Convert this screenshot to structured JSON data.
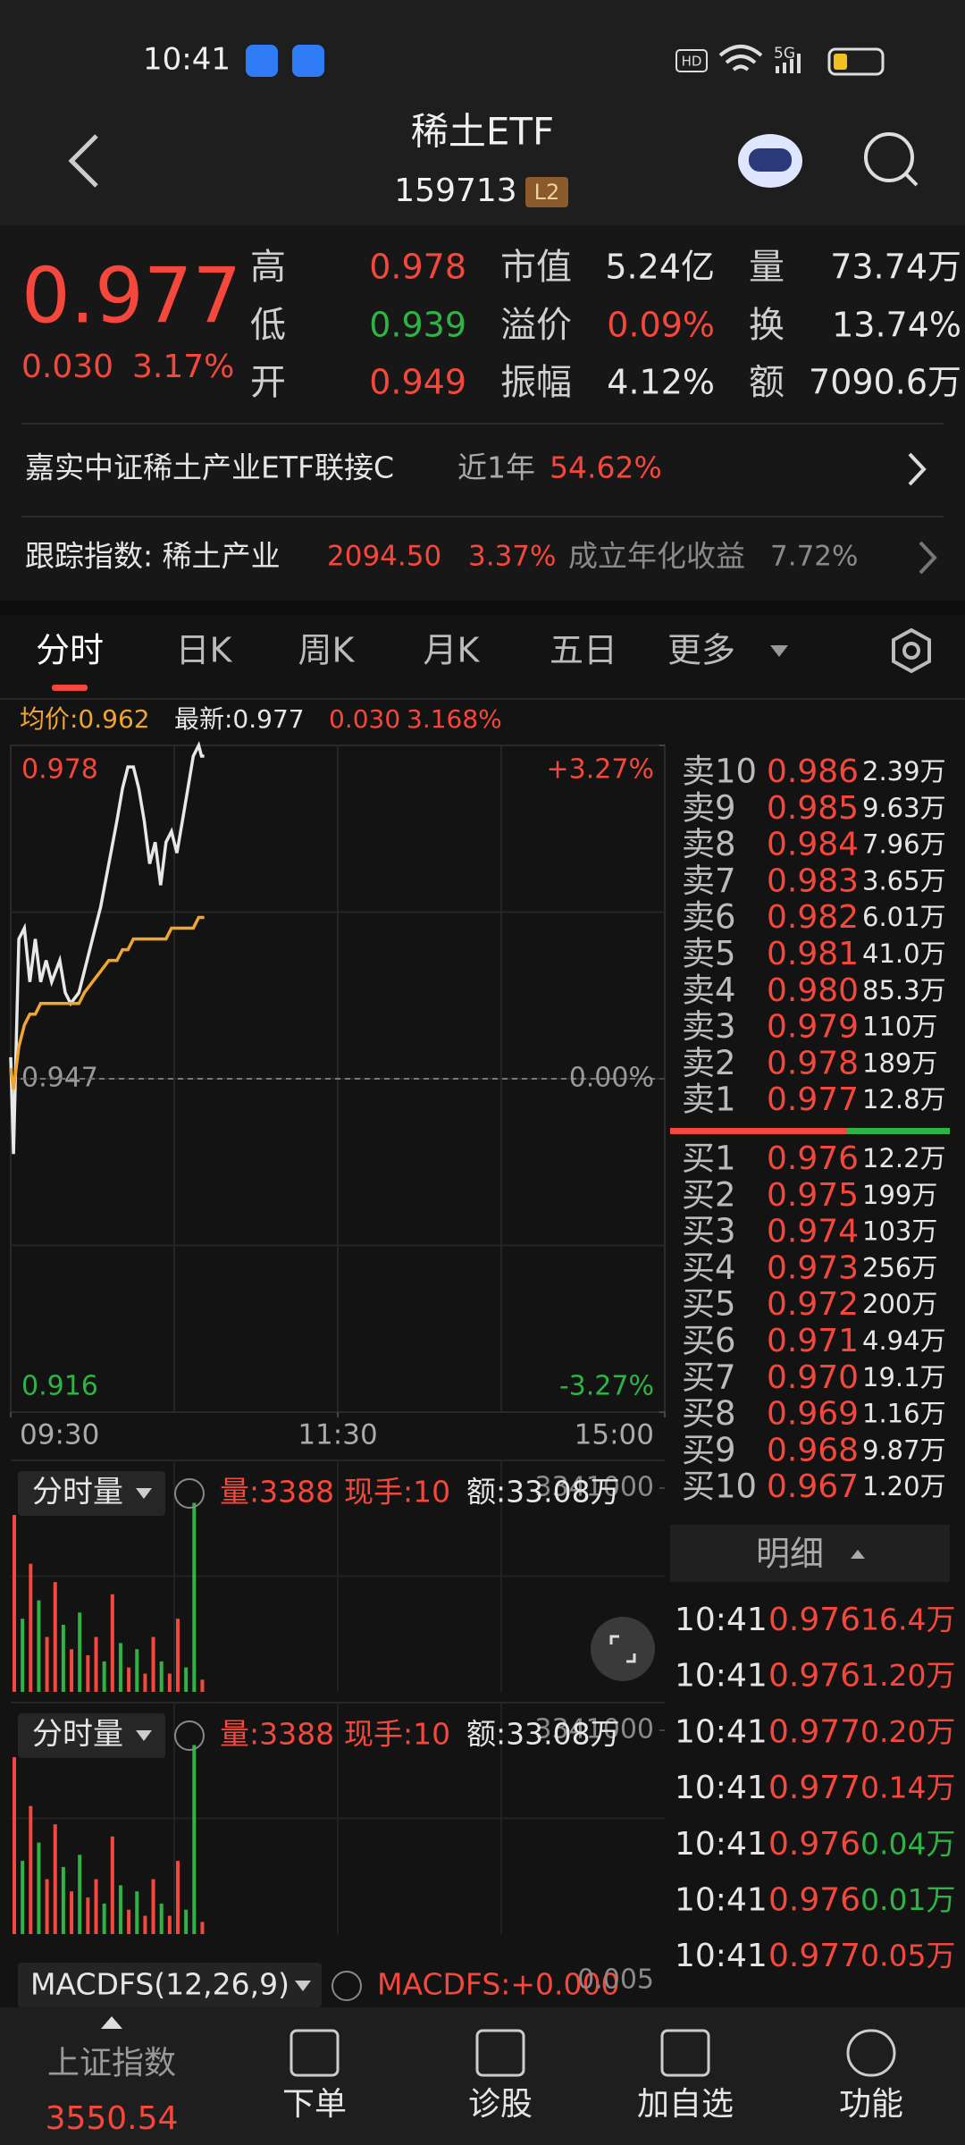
{
  "status_bar": {
    "time": "10:41",
    "hd": "HD",
    "network": "5G"
  },
  "header": {
    "title": "稀土ETF",
    "code": "159713",
    "badge": "L2"
  },
  "quote": {
    "price": "0.977",
    "change": "0.030",
    "change_pct": "3.17%",
    "stats": [
      [
        {
          "label": "高",
          "value": "0.978",
          "color": "#f5473b"
        },
        {
          "label": "市值",
          "value": "5.24亿",
          "color": "#e6e6e6"
        },
        {
          "label": "量",
          "value": "73.74万",
          "color": "#e6e6e6"
        }
      ],
      [
        {
          "label": "低",
          "value": "0.939",
          "color": "#2fb344"
        },
        {
          "label": "溢价",
          "value": "0.09%",
          "color": "#f5473b"
        },
        {
          "label": "换",
          "value": "13.74%",
          "color": "#e6e6e6"
        }
      ],
      [
        {
          "label": "开",
          "value": "0.949",
          "color": "#f5473b"
        },
        {
          "label": "振幅",
          "value": "4.12%",
          "color": "#e6e6e6"
        },
        {
          "label": "额",
          "value": "7090.6万",
          "color": "#e6e6e6"
        }
      ]
    ]
  },
  "fund": {
    "name": "嘉实中证稀土产业ETF联接C",
    "period": "近1年",
    "return": "54.62%"
  },
  "index": {
    "label": "跟踪指数: 稀土产业",
    "value": "2094.50",
    "change": "3.37%",
    "annual_label": "成立年化收益",
    "annual": "7.72%"
  },
  "tabs": [
    "分时",
    "日K",
    "周K",
    "月K",
    "五日",
    "更多"
  ],
  "chart_info": {
    "avg": "均价:0.962",
    "latest": "最新:0.977",
    "change": "0.030",
    "change_pct": "3.168%"
  },
  "chart_data": [
    {
      "type": "line",
      "x": [
        "09:30",
        "09:31",
        "09:33",
        "09:35",
        "09:37",
        "09:39",
        "09:41",
        "09:43",
        "09:45",
        "09:48",
        "09:50",
        "09:52",
        "09:55",
        "09:57",
        "10:00",
        "10:03",
        "10:06",
        "10:09",
        "10:11",
        "10:13",
        "10:15",
        "10:17",
        "10:19",
        "10:21",
        "10:23",
        "10:25",
        "10:27",
        "10:29",
        "10:31",
        "10:33",
        "10:35",
        "10:37",
        "10:39",
        "10:40",
        "10:41"
      ],
      "series": [
        {
          "name": "价格",
          "color": "#e8e8e8",
          "values": [
            0.949,
            0.94,
            0.96,
            0.961,
            0.956,
            0.96,
            0.956,
            0.958,
            0.956,
            0.958,
            0.955,
            0.954,
            0.955,
            0.957,
            0.96,
            0.963,
            0.967,
            0.971,
            0.974,
            0.976,
            0.976,
            0.974,
            0.971,
            0.967,
            0.969,
            0.965,
            0.969,
            0.97,
            0.968,
            0.971,
            0.974,
            0.977,
            0.978,
            0.977,
            0.977
          ]
        },
        {
          "name": "均价",
          "color": "#f0a531",
          "values": [
            0.948,
            0.946,
            0.95,
            0.952,
            0.953,
            0.953,
            0.954,
            0.954,
            0.954,
            0.954,
            0.954,
            0.954,
            0.954,
            0.955,
            0.956,
            0.957,
            0.958,
            0.958,
            0.959,
            0.959,
            0.96,
            0.96,
            0.96,
            0.96,
            0.96,
            0.96,
            0.96,
            0.961,
            0.961,
            0.961,
            0.961,
            0.961,
            0.962,
            0.962,
            0.962
          ]
        }
      ],
      "xlim": [
        "09:30",
        "15:00"
      ],
      "xticks": [
        "09:30",
        "11:30",
        "15:00"
      ],
      "ylim": [
        0.916,
        0.978
      ],
      "yticks": [
        0.978,
        0.947,
        0.916
      ],
      "y2lim": [
        -3.27,
        3.27
      ],
      "y2ticks": [
        {
          "value": 3.27,
          "label": "+3.27%"
        },
        {
          "value": 0,
          "label": "0.00%"
        },
        {
          "value": -3.27,
          "label": "-3.27%"
        }
      ]
    },
    {
      "type": "bar",
      "title": "分时量",
      "volume": "量:3388",
      "hand": "现手:10",
      "amount": "额:33.08万",
      "x": [
        "09:30",
        "09:33",
        "09:36",
        "09:39",
        "09:42",
        "09:45",
        "09:48",
        "09:51",
        "09:54",
        "09:57",
        "10:00",
        "10:03",
        "10:06",
        "10:09",
        "10:12",
        "10:15",
        "10:18",
        "10:21",
        "10:24",
        "10:27",
        "10:30",
        "10:33",
        "10:36",
        "10:39"
      ],
      "values": [
        2900000,
        1200000,
        2100000,
        1500000,
        900000,
        1800000,
        1100000,
        700000,
        1300000,
        600000,
        900000,
        500000,
        1600000,
        800000,
        400000,
        700000,
        300000,
        900000,
        500000,
        300000,
        1200000,
        400000,
        3100000,
        200000
      ],
      "colors": [
        "#f5473b",
        "#2fb344",
        "#f5473b",
        "#2fb344",
        "#f5473b",
        "#f5473b",
        "#2fb344",
        "#f5473b",
        "#2fb344",
        "#f5473b",
        "#f5473b",
        "#2fb344",
        "#f5473b",
        "#2fb344",
        "#f5473b",
        "#2fb344",
        "#f5473b",
        "#f5473b",
        "#2fb344",
        "#f5473b",
        "#f5473b",
        "#2fb344",
        "#2fb344",
        "#f5473b"
      ],
      "xlim": [
        "09:30",
        "15:00"
      ],
      "ylim": [
        0,
        3341000
      ],
      "yticks": [
        3341000
      ]
    },
    {
      "type": "bar",
      "title": "分时量",
      "volume": "量:3388",
      "hand": "现手:10",
      "amount": "额:33.08万",
      "x": [
        "09:30",
        "09:33",
        "09:36",
        "09:39",
        "09:42",
        "09:45",
        "09:48",
        "09:51",
        "09:54",
        "09:57",
        "10:00",
        "10:03",
        "10:06",
        "10:09",
        "10:12",
        "10:15",
        "10:18",
        "10:21",
        "10:24",
        "10:27",
        "10:30",
        "10:33",
        "10:36",
        "10:39"
      ],
      "values": [
        2900000,
        1200000,
        2100000,
        1500000,
        900000,
        1800000,
        1100000,
        700000,
        1300000,
        600000,
        900000,
        500000,
        1600000,
        800000,
        400000,
        700000,
        300000,
        900000,
        500000,
        300000,
        1200000,
        400000,
        3100000,
        200000
      ],
      "colors": [
        "#f5473b",
        "#2fb344",
        "#f5473b",
        "#2fb344",
        "#f5473b",
        "#f5473b",
        "#2fb344",
        "#f5473b",
        "#2fb344",
        "#f5473b",
        "#f5473b",
        "#2fb344",
        "#f5473b",
        "#2fb344",
        "#f5473b",
        "#2fb344",
        "#f5473b",
        "#f5473b",
        "#2fb344",
        "#f5473b",
        "#f5473b",
        "#2fb344",
        "#2fb344",
        "#f5473b"
      ],
      "xlim": [
        "09:30",
        "15:00"
      ],
      "ylim": [
        0,
        3341000
      ],
      "yticks": [
        3341000
      ]
    }
  ],
  "order_book": {
    "asks": [
      {
        "label": "卖10",
        "price": "0.986",
        "volume": "2.39万"
      },
      {
        "label": "卖9",
        "price": "0.985",
        "volume": "9.63万"
      },
      {
        "label": "卖8",
        "price": "0.984",
        "volume": "7.96万"
      },
      {
        "label": "卖7",
        "price": "0.983",
        "volume": "3.65万"
      },
      {
        "label": "卖6",
        "price": "0.982",
        "volume": "6.01万"
      },
      {
        "label": "卖5",
        "price": "0.981",
        "volume": "41.0万"
      },
      {
        "label": "卖4",
        "price": "0.980",
        "volume": "85.3万"
      },
      {
        "label": "卖3",
        "price": "0.979",
        "volume": "110万"
      },
      {
        "label": "卖2",
        "price": "0.978",
        "volume": "189万"
      },
      {
        "label": "卖1",
        "price": "0.977",
        "volume": "12.8万"
      }
    ],
    "bids": [
      {
        "label": "买1",
        "price": "0.976",
        "volume": "12.2万"
      },
      {
        "label": "买2",
        "price": "0.975",
        "volume": "199万"
      },
      {
        "label": "买3",
        "price": "0.974",
        "volume": "103万"
      },
      {
        "label": "买4",
        "price": "0.973",
        "volume": "256万"
      },
      {
        "label": "买5",
        "price": "0.972",
        "volume": "200万"
      },
      {
        "label": "买6",
        "price": "0.971",
        "volume": "4.94万"
      },
      {
        "label": "买7",
        "price": "0.970",
        "volume": "19.1万"
      },
      {
        "label": "买8",
        "price": "0.969",
        "volume": "1.16万"
      },
      {
        "label": "买9",
        "price": "0.968",
        "volume": "9.87万"
      },
      {
        "label": "买10",
        "price": "0.967",
        "volume": "1.20万"
      }
    ]
  },
  "trades": {
    "title": "明细",
    "rows": [
      {
        "time": "10:41",
        "price": "0.976",
        "volume": "16.4万",
        "color": "#f5473b"
      },
      {
        "time": "10:41",
        "price": "0.976",
        "volume": "1.20万",
        "color": "#f5473b"
      },
      {
        "time": "10:41",
        "price": "0.977",
        "volume": "0.20万",
        "color": "#f5473b"
      },
      {
        "time": "10:41",
        "price": "0.977",
        "volume": "0.14万",
        "color": "#f5473b"
      },
      {
        "time": "10:41",
        "price": "0.976",
        "volume": "0.04万",
        "color": "#2fb344"
      },
      {
        "time": "10:41",
        "price": "0.976",
        "volume": "0.01万",
        "color": "#2fb344"
      },
      {
        "time": "10:41",
        "price": "0.977",
        "volume": "0.05万",
        "color": "#f5473b"
      }
    ]
  },
  "macd": {
    "label": "MACDFS(12,26,9)",
    "value": "MACDFS:+0.000",
    "max": "0.005"
  },
  "bottom_nav": {
    "index_name": "上证指数",
    "index_value": "3550.54",
    "items": [
      "下单",
      "诊股",
      "加自选",
      "功能"
    ]
  }
}
